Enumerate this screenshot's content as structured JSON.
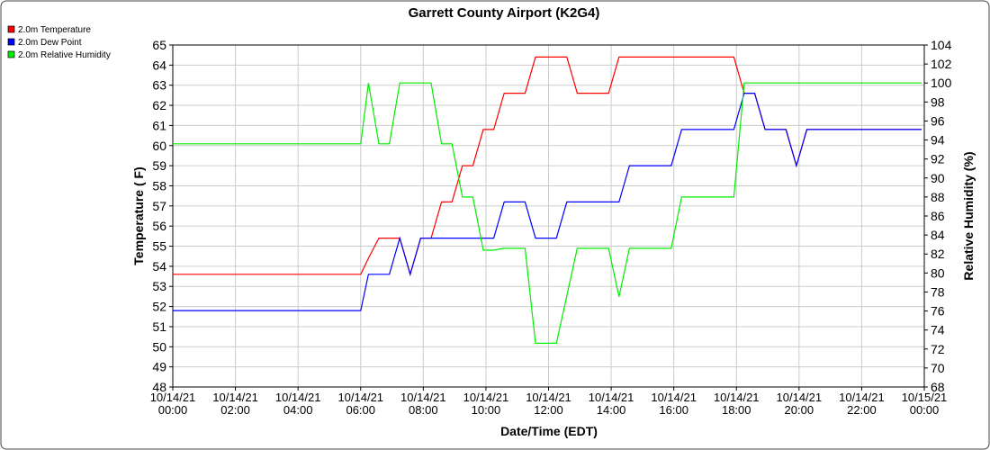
{
  "chart_data": {
    "type": "line",
    "title": "Garrett County Airport (K2G4)",
    "x_label": "Date/Time (EDT)",
    "y_label": "Temperature ( F)",
    "y2_label": "Relative Humidity (%)",
    "legend": "top-left",
    "grid": true,
    "x": [
      "10/14/21 00:00",
      "10/14/21 06:00",
      "10/14/21 06:15",
      "10/14/21 06:35",
      "10/14/21 06:55",
      "10/14/21 07:15",
      "10/14/21 07:35",
      "10/14/21 07:55",
      "10/14/21 08:15",
      "10/14/21 08:35",
      "10/14/21 08:55",
      "10/14/21 09:15",
      "10/14/21 09:35",
      "10/14/21 09:55",
      "10/14/21 10:15",
      "10/14/21 10:35",
      "10/14/21 11:15",
      "10/14/21 11:35",
      "10/14/21 12:15",
      "10/14/21 12:35",
      "10/14/21 12:55",
      "10/14/21 13:55",
      "10/14/21 14:15",
      "10/14/21 14:35",
      "10/14/21 15:55",
      "10/14/21 16:15",
      "10/14/21 17:55",
      "10/14/21 18:15",
      "10/14/21 18:35",
      "10/14/21 18:55",
      "10/14/21 19:35",
      "10/14/21 19:55",
      "10/14/21 20:15",
      "10/14/21 23:55"
    ],
    "series": [
      {
        "name": "2.0m Temperature",
        "color": "#ff0000",
        "values": [
          53.6,
          53.6,
          54.4,
          55.4,
          55.4,
          55.4,
          53.6,
          55.4,
          55.4,
          57.2,
          57.2,
          59.0,
          59.0,
          60.8,
          60.8,
          62.6,
          62.6,
          64.4,
          64.4,
          64.4,
          62.6,
          62.6,
          64.4,
          64.4,
          64.4,
          64.4,
          64.4,
          62.6,
          62.6,
          60.8,
          60.8,
          59.0,
          60.8,
          60.8
        ]
      },
      {
        "name": "2.0m Dew Point",
        "color": "#0000ff",
        "values": [
          51.8,
          51.8,
          53.6,
          53.6,
          53.6,
          55.4,
          53.6,
          55.4,
          55.4,
          55.4,
          55.4,
          55.4,
          55.4,
          55.4,
          55.4,
          57.2,
          57.2,
          55.4,
          55.4,
          57.2,
          57.2,
          57.2,
          57.2,
          59.0,
          59.0,
          60.8,
          60.8,
          62.6,
          62.6,
          60.8,
          60.8,
          59.0,
          60.8,
          60.8
        ]
      },
      {
        "name": "2.0m Relative Humidity",
        "color": "#00ee00",
        "axis": "y2",
        "values": [
          93.6,
          93.6,
          100,
          93.6,
          93.6,
          100,
          100,
          100,
          100,
          93.6,
          93.6,
          88,
          88,
          82.4,
          82.4,
          82.6,
          82.6,
          72.6,
          72.6,
          77.6,
          82.6,
          82.6,
          77.5,
          82.6,
          82.6,
          88,
          88,
          100,
          100,
          100,
          100,
          100,
          100,
          100
        ]
      }
    ],
    "xlim": [
      "10/14/21 00:00",
      "10/15/21 00:00"
    ],
    "xticks": [
      "10/14/21 00:00",
      "10/14/21 02:00",
      "10/14/21 04:00",
      "10/14/21 06:00",
      "10/14/21 08:00",
      "10/14/21 10:00",
      "10/14/21 12:00",
      "10/14/21 14:00",
      "10/14/21 16:00",
      "10/14/21 18:00",
      "10/14/21 20:00",
      "10/14/21 22:00",
      "10/15/21 00:00"
    ],
    "ylim": [
      48,
      65
    ],
    "yticks": [
      48,
      49,
      50,
      51,
      52,
      53,
      54,
      55,
      56,
      57,
      58,
      59,
      60,
      61,
      62,
      63,
      64,
      65
    ],
    "y2lim": [
      68,
      104
    ],
    "y2ticks": [
      68,
      70,
      72,
      74,
      76,
      78,
      80,
      82,
      84,
      86,
      88,
      90,
      92,
      94,
      96,
      98,
      100,
      102,
      104
    ]
  }
}
